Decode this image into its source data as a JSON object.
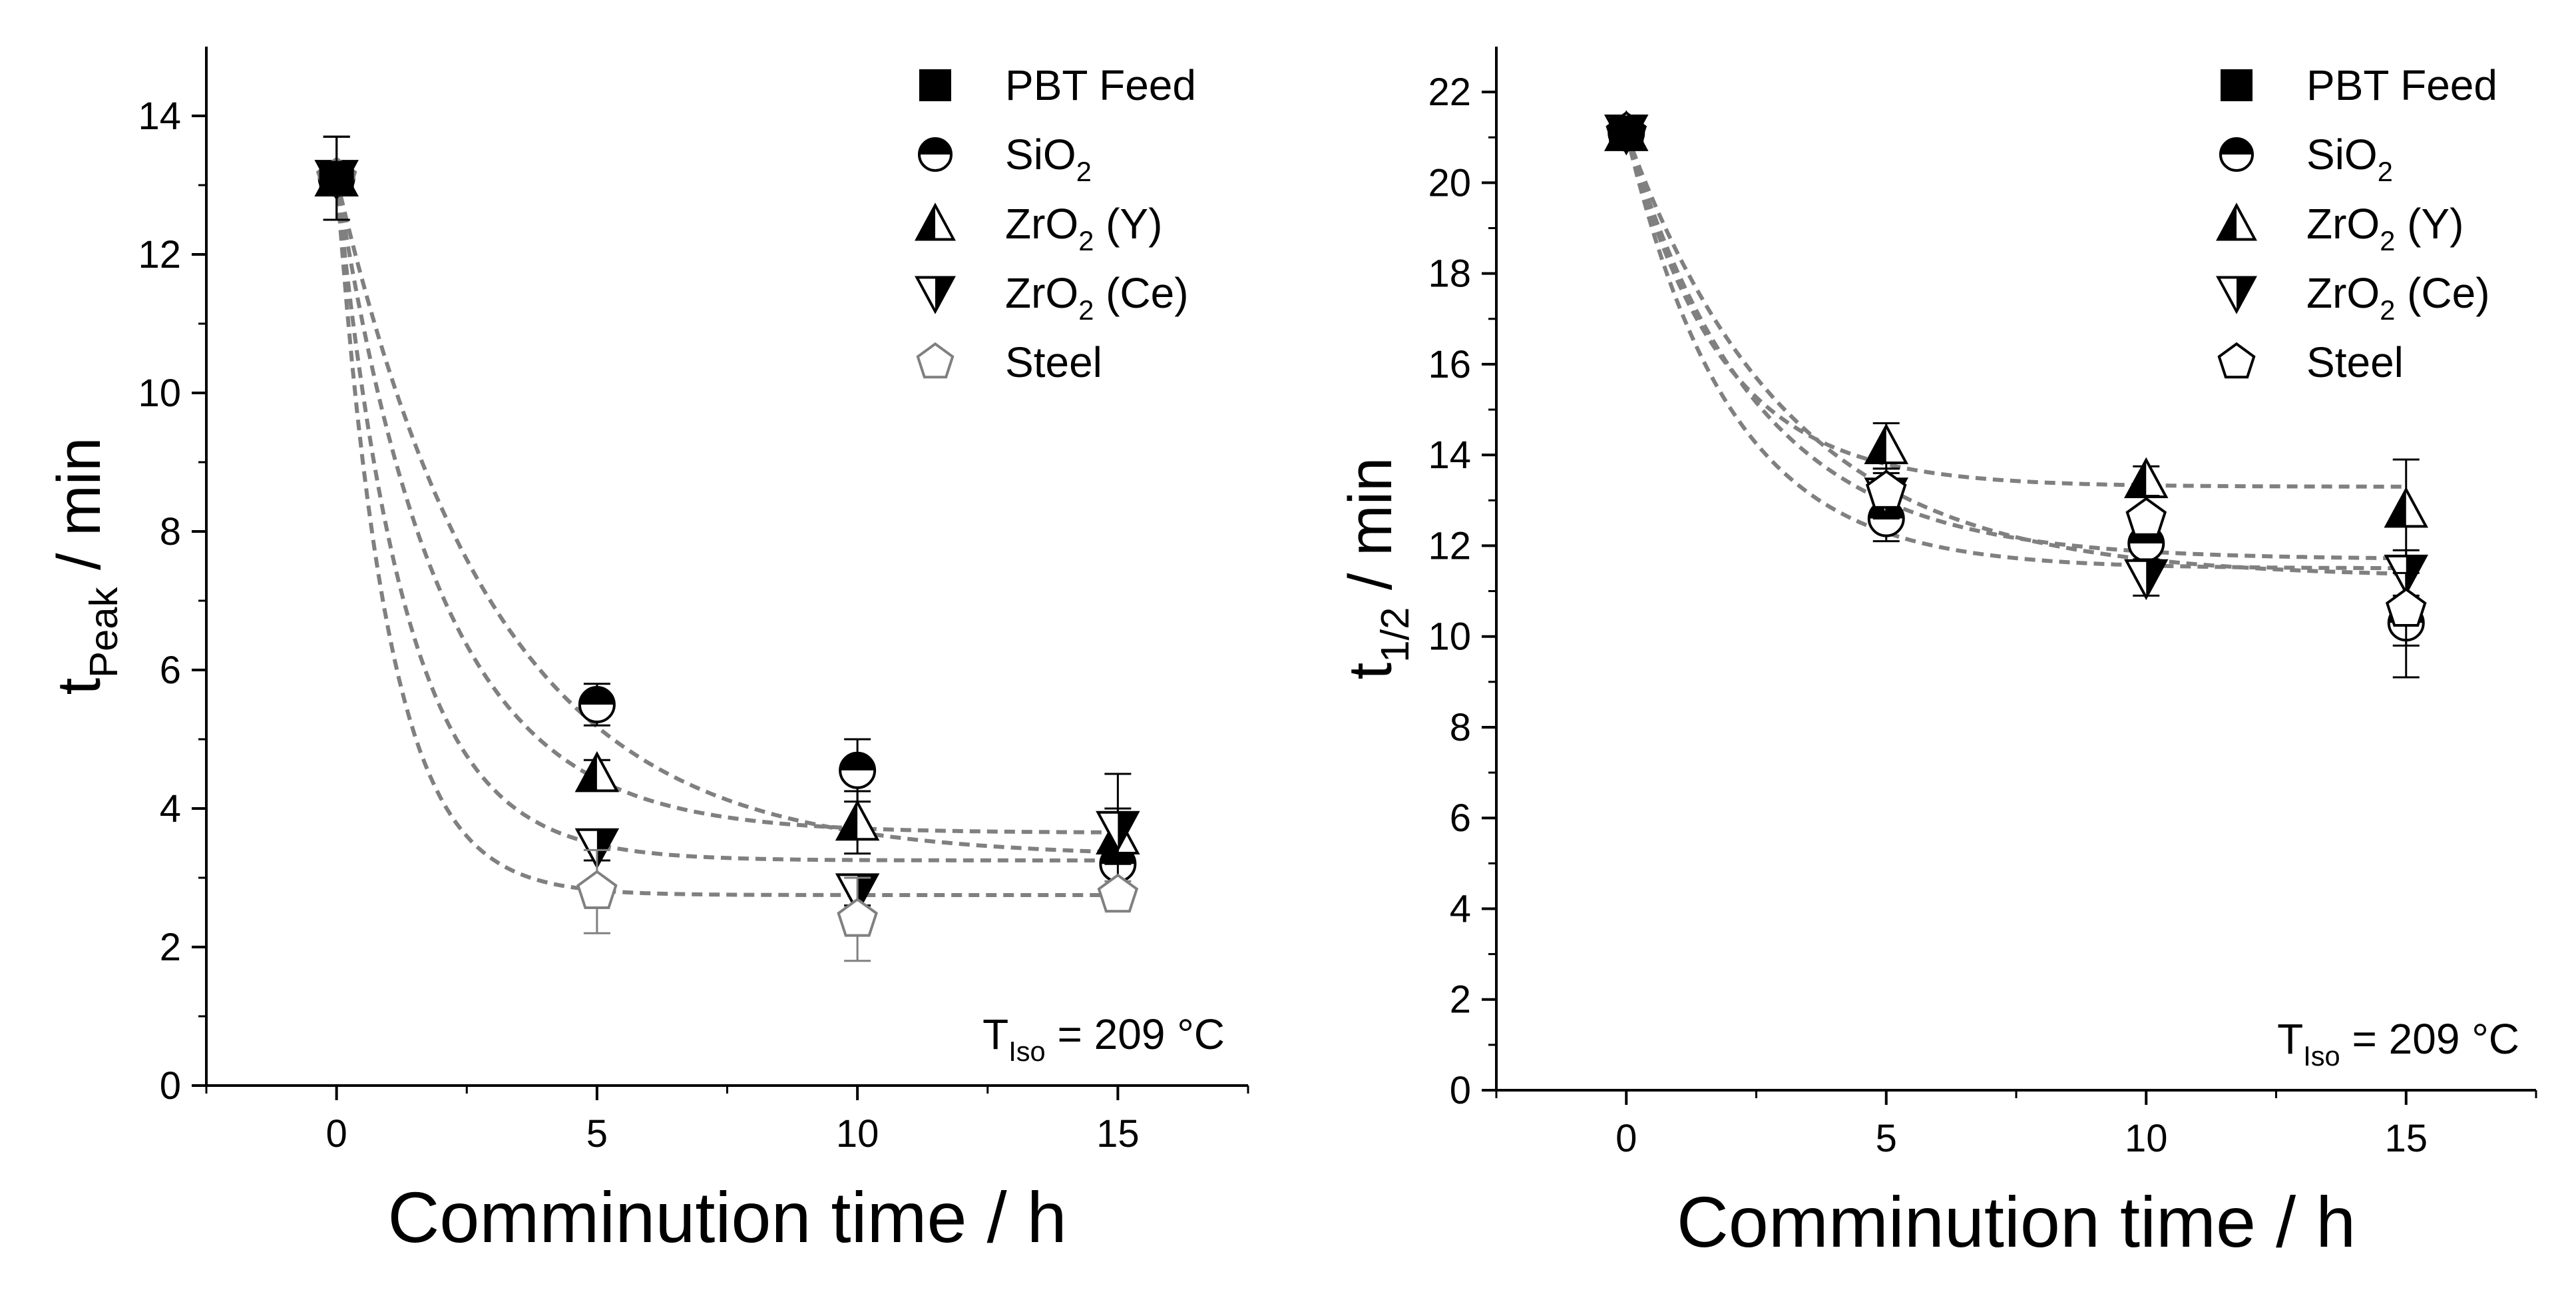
{
  "chart_data": [
    {
      "type": "scatter",
      "ylabel_main": "t",
      "ylabel_sub": "Peak",
      "ylabel_rest": " / min",
      "xlabel": "Comminution time / h",
      "annotation": {
        "main": "T",
        "sub": "Iso",
        "rest": " = 209 °C"
      },
      "xlim": [
        -2.5,
        17.5
      ],
      "ylim": [
        0,
        15
      ],
      "xticks": [
        0,
        5,
        10,
        15
      ],
      "yticks": [
        0,
        2,
        4,
        6,
        8,
        10,
        12,
        14
      ],
      "legend_position": "top-right",
      "series": [
        {
          "name": "PBT Feed",
          "sub": "",
          "suffix": "",
          "marker": "square-filled",
          "x": [
            0
          ],
          "y": [
            13.1
          ],
          "err": [
            0.6
          ]
        },
        {
          "name": "SiO",
          "sub": "2",
          "suffix": "",
          "marker": "circle-half",
          "x": [
            0,
            5,
            10,
            15
          ],
          "y": [
            13.1,
            5.5,
            4.55,
            3.2
          ],
          "err": [
            0.6,
            0.3,
            0.45,
            0.3
          ],
          "fit": {
            "a": 3.3,
            "b": 9.8,
            "k": 0.33
          }
        },
        {
          "name": "ZrO",
          "sub": "2",
          "suffix": " (Y)",
          "marker": "triangle-half",
          "x": [
            0,
            5,
            10,
            15
          ],
          "y": [
            13.1,
            4.5,
            3.8,
            3.6
          ],
          "err": [
            0.6,
            0.2,
            0.45,
            0.4
          ],
          "fit": {
            "a": 3.65,
            "b": 9.45,
            "k": 0.5
          }
        },
        {
          "name": "ZrO",
          "sub": "2",
          "suffix": " (Ce)",
          "marker": "triangle-down-half",
          "x": [
            0,
            5,
            10,
            15
          ],
          "y": [
            13.1,
            3.45,
            2.8,
            3.7
          ],
          "err": [
            0.6,
            0.2,
            0.2,
            0.8
          ],
          "fit": {
            "a": 3.25,
            "b": 9.85,
            "k": 0.75
          }
        },
        {
          "name": "Steel",
          "sub": "",
          "suffix": "",
          "marker": "pentagon-open",
          "x": [
            0,
            5,
            10,
            15
          ],
          "y": [
            13.1,
            2.8,
            2.4,
            2.75
          ],
          "err": [
            0.6,
            0.6,
            0.6,
            0.2
          ],
          "fit": {
            "a": 2.75,
            "b": 10.35,
            "k": 1.0
          }
        }
      ]
    },
    {
      "type": "scatter",
      "ylabel_main": "t",
      "ylabel_sub": "1/2",
      "ylabel_rest": " / min",
      "xlabel": "Comminution time / h",
      "annotation": {
        "main": "T",
        "sub": "Iso",
        "rest": " = 209 °C"
      },
      "xlim": [
        -2.5,
        17.5
      ],
      "ylim": [
        0,
        23
      ],
      "xticks": [
        0,
        5,
        10,
        15
      ],
      "yticks": [
        0,
        2,
        4,
        6,
        8,
        10,
        12,
        14,
        16,
        18,
        20,
        22
      ],
      "legend_position": "top-right",
      "series": [
        {
          "name": "PBT Feed",
          "sub": "",
          "suffix": "",
          "marker": "square-filled",
          "x": [
            0
          ],
          "y": [
            21.1
          ],
          "err": [
            0.3
          ]
        },
        {
          "name": "SiO",
          "sub": "2",
          "suffix": "",
          "marker": "circle-half",
          "x": [
            0,
            5,
            10,
            15
          ],
          "y": [
            21.1,
            12.6,
            12.05,
            10.3
          ],
          "err": [
            0.3,
            0.5,
            0.5,
            1.2
          ],
          "fit": {
            "a": 11.7,
            "b": 9.4,
            "k": 0.4
          }
        },
        {
          "name": "ZrO",
          "sub": "2",
          "suffix": " (Y)",
          "marker": "triangle-half",
          "x": [
            0,
            5,
            10,
            15
          ],
          "y": [
            21.1,
            14.2,
            13.45,
            12.8
          ],
          "err": [
            0.3,
            0.5,
            0.3,
            1.1
          ],
          "fit": {
            "a": 13.3,
            "b": 7.8,
            "k": 0.55
          }
        },
        {
          "name": "ZrO",
          "sub": "2",
          "suffix": " (Ce)",
          "marker": "triangle-down-half",
          "x": [
            0,
            5,
            10,
            15
          ],
          "y": [
            21.1,
            13.1,
            11.3,
            11.4
          ],
          "err": [
            0.3,
            0.5,
            0.4,
            0.5
          ],
          "fit": {
            "a": 11.5,
            "b": 9.6,
            "k": 0.5
          }
        },
        {
          "name": "Steel",
          "sub": "",
          "suffix": "",
          "marker": "pentagon-open",
          "x": [
            0,
            5,
            10,
            15
          ],
          "y": [
            21.1,
            13.2,
            12.6,
            10.6
          ],
          "err": [
            0.3,
            0.5,
            0.5,
            0.8
          ],
          "fit": {
            "a": 11.3,
            "b": 9.8,
            "k": 0.32
          }
        }
      ]
    }
  ],
  "colors": {
    "fit_line": "#808080",
    "marker": "#000000",
    "steel_marker_left": "#808080",
    "axis": "#000000"
  }
}
